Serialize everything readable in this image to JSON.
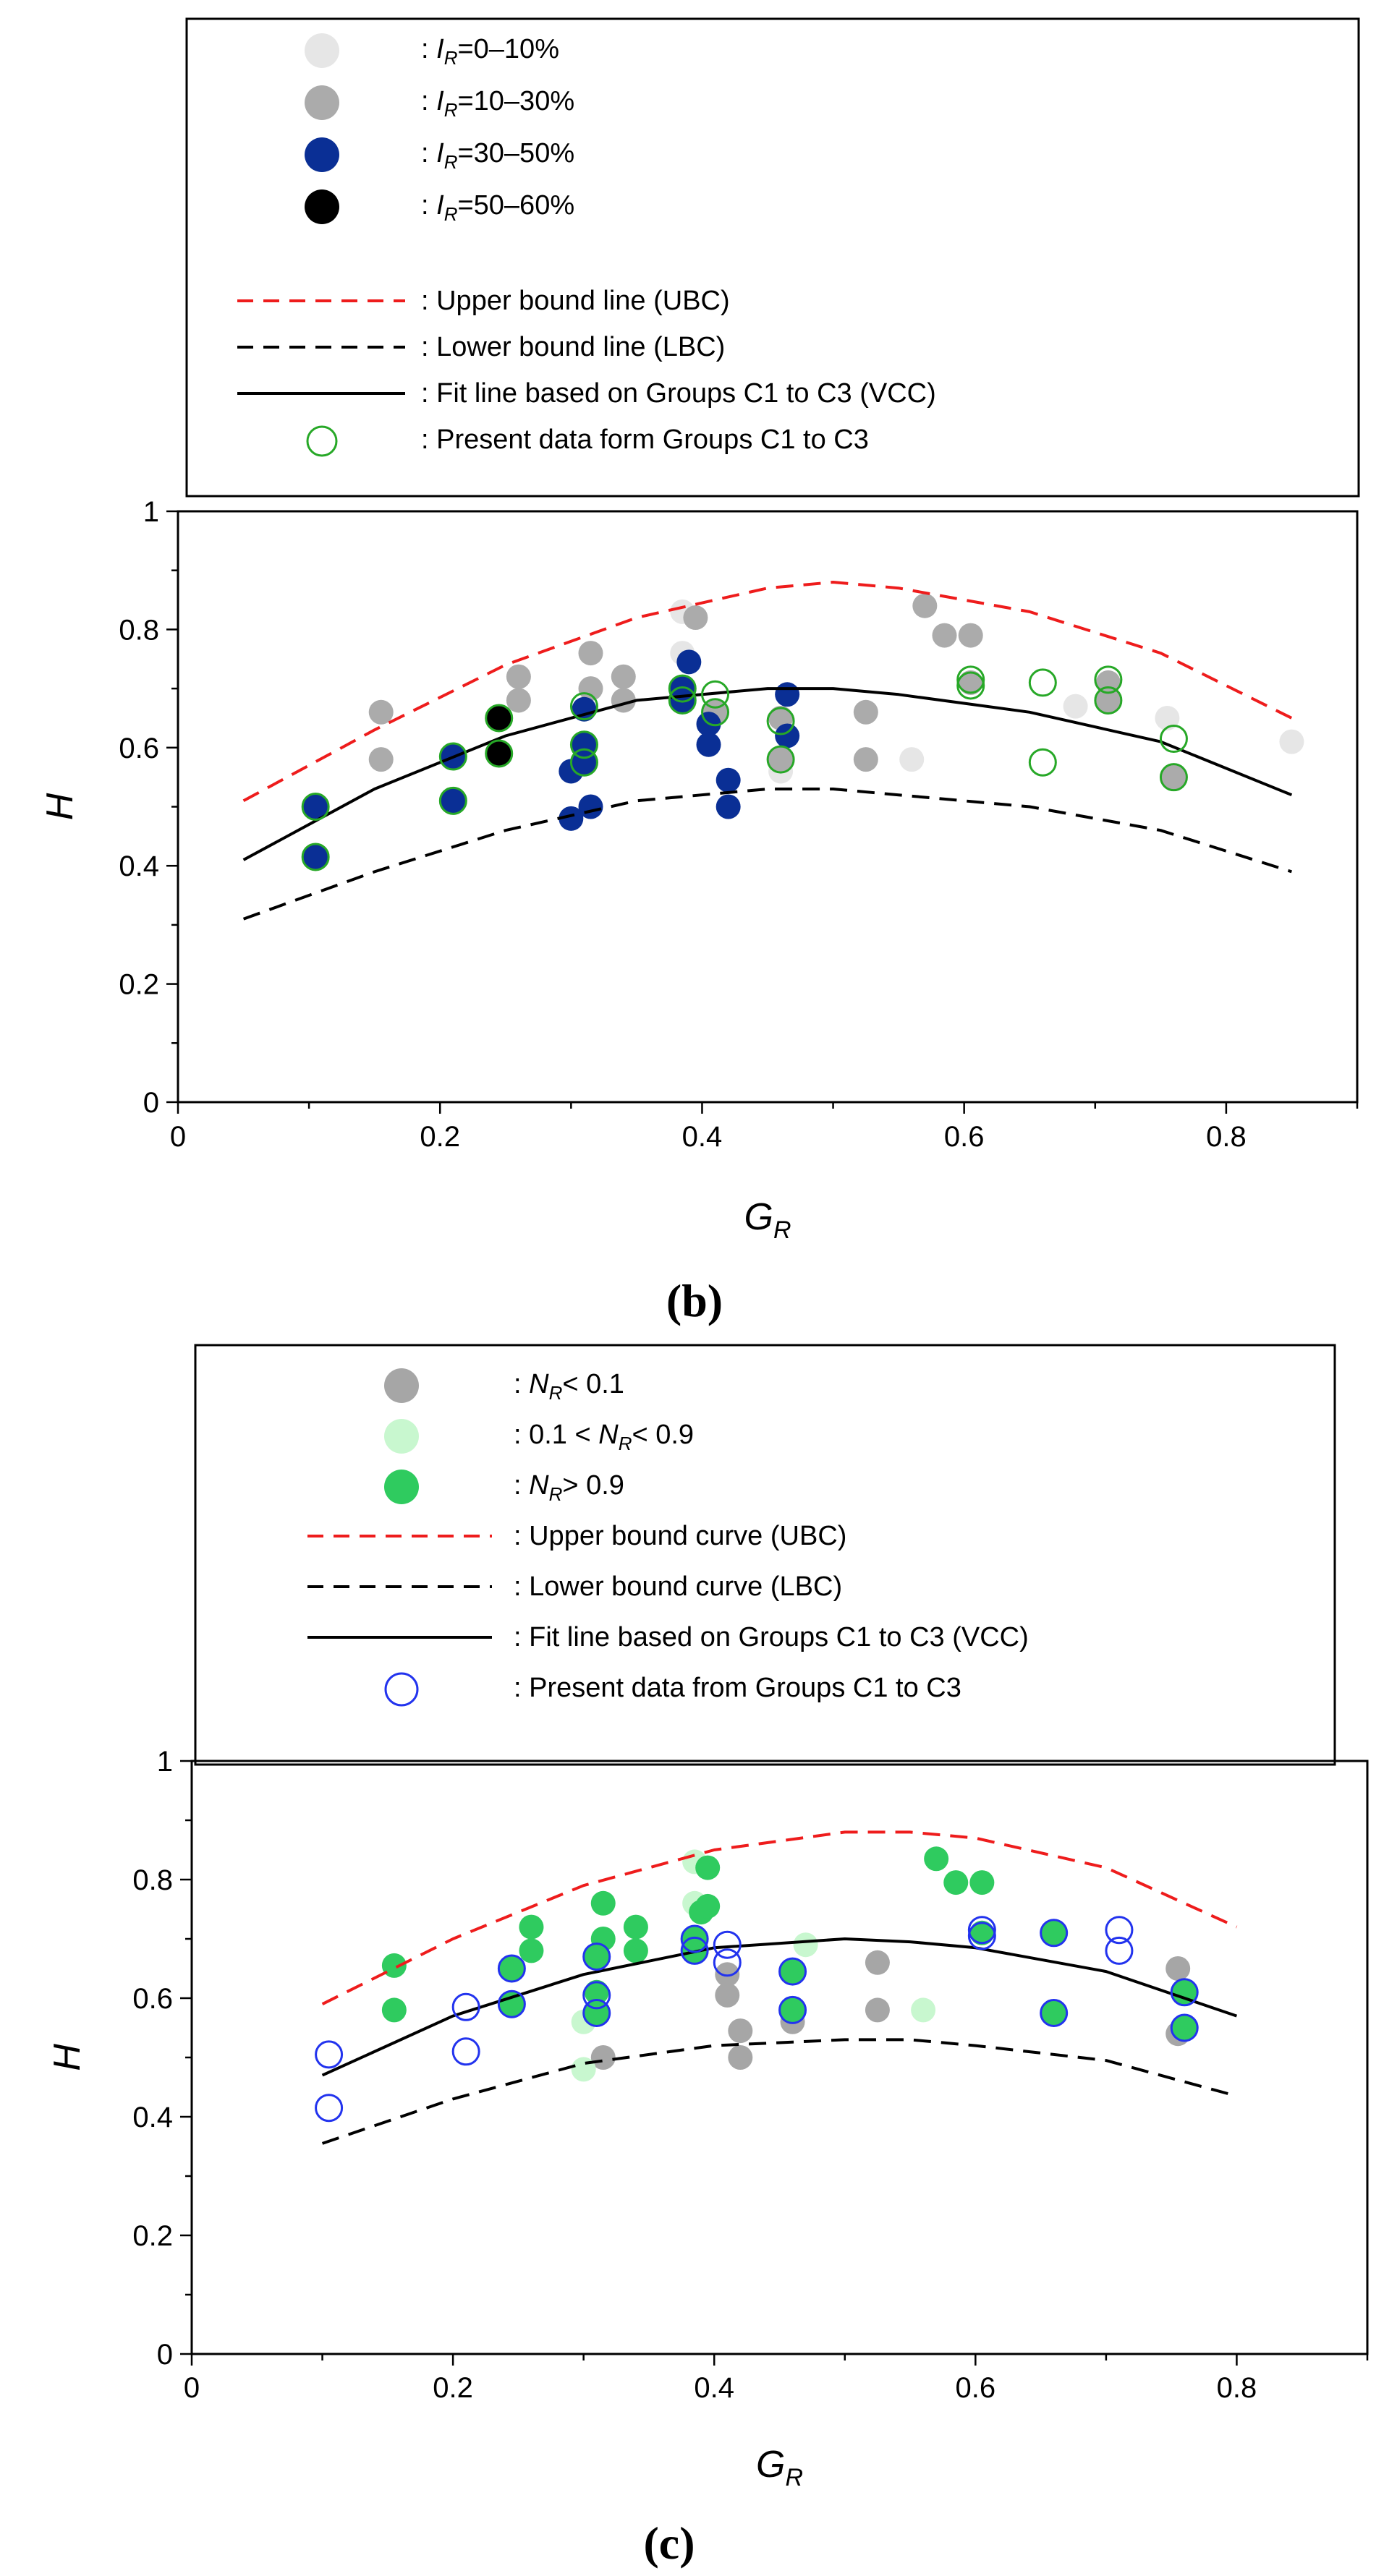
{
  "chart_data": [
    {
      "type": "scatter",
      "panel_label": "(b)",
      "xlabel": "G",
      "xlabel_sub": "R",
      "ylabel": "H",
      "xlim": [
        0,
        0.9
      ],
      "ylim": [
        0,
        1
      ],
      "x_ticks": [
        "0",
        "0.2",
        "0.4",
        "0.6",
        "0.8"
      ],
      "y_ticks": [
        "0",
        "0.2",
        "0.4",
        "0.6",
        "0.8",
        "1"
      ],
      "legend": [
        {
          "key": "ir1",
          "prefix": ": ",
          "var": "I",
          "sub": "R",
          "text": "=0–10%",
          "color": "#e6e6e6"
        },
        {
          "key": "ir2",
          "prefix": ": ",
          "var": "I",
          "sub": "R",
          "text": "=10–30%",
          "color": "#ababab"
        },
        {
          "key": "ir3",
          "prefix": ": ",
          "var": "I",
          "sub": "R",
          "text": "=30–50%",
          "color": "#0a2f95"
        },
        {
          "key": "ir4",
          "prefix": ": ",
          "var": "I",
          "sub": "R",
          "text": "=50–60%",
          "color": "#000000"
        },
        {
          "key": "ubc",
          "text": ": Upper bound line (UBC)",
          "line": "dashed",
          "color": "#ee1c1c"
        },
        {
          "key": "lbc",
          "text": ": Lower bound line (LBC)",
          "line": "dashed",
          "color": "#000000"
        },
        {
          "key": "vcc",
          "text": ": Fit line based on Groups C1 to C3 (VCC)",
          "line": "solid",
          "color": "#000000"
        },
        {
          "key": "present",
          "text": ": Present data form Groups C1 to C3",
          "marker": "open-circle",
          "color": "#27a827"
        }
      ],
      "curves": [
        {
          "name": "UBC",
          "x": [
            0.05,
            0.15,
            0.25,
            0.35,
            0.45,
            0.5,
            0.55,
            0.65,
            0.75,
            0.85
          ],
          "y": [
            0.51,
            0.63,
            0.74,
            0.82,
            0.87,
            0.88,
            0.87,
            0.83,
            0.76,
            0.65
          ]
        },
        {
          "name": "LBC",
          "x": [
            0.05,
            0.15,
            0.25,
            0.35,
            0.45,
            0.5,
            0.55,
            0.65,
            0.75,
            0.85
          ],
          "y": [
            0.31,
            0.39,
            0.46,
            0.51,
            0.53,
            0.53,
            0.52,
            0.5,
            0.46,
            0.39
          ]
        },
        {
          "name": "VCC",
          "x": [
            0.05,
            0.15,
            0.25,
            0.35,
            0.45,
            0.5,
            0.55,
            0.65,
            0.75,
            0.85
          ],
          "y": [
            0.41,
            0.53,
            0.62,
            0.68,
            0.7,
            0.7,
            0.69,
            0.66,
            0.61,
            0.52
          ]
        }
      ],
      "series": [
        {
          "name": "IR 0-10%",
          "color": "#e6e6e6",
          "points": [
            [
              0.385,
              0.83
            ],
            [
              0.385,
              0.76
            ],
            [
              0.46,
              0.56
            ],
            [
              0.56,
              0.58
            ],
            [
              0.685,
              0.67
            ],
            [
              0.755,
              0.65
            ],
            [
              0.85,
              0.61
            ]
          ]
        },
        {
          "name": "IR 10-30%",
          "color": "#ababab",
          "points": [
            [
              0.155,
              0.66
            ],
            [
              0.155,
              0.58
            ],
            [
              0.26,
              0.72
            ],
            [
              0.26,
              0.68
            ],
            [
              0.315,
              0.76
            ],
            [
              0.315,
              0.7
            ],
            [
              0.34,
              0.72
            ],
            [
              0.34,
              0.68
            ],
            [
              0.395,
              0.82
            ],
            [
              0.41,
              0.66
            ],
            [
              0.46,
              0.65
            ],
            [
              0.46,
              0.58
            ],
            [
              0.525,
              0.66
            ],
            [
              0.525,
              0.58
            ],
            [
              0.57,
              0.84
            ],
            [
              0.585,
              0.79
            ],
            [
              0.605,
              0.79
            ],
            [
              0.605,
              0.71
            ],
            [
              0.71,
              0.71
            ],
            [
              0.71,
              0.68
            ],
            [
              0.76,
              0.55
            ]
          ]
        },
        {
          "name": "IR 30-50%",
          "color": "#0a2f95",
          "points": [
            [
              0.105,
              0.5
            ],
            [
              0.105,
              0.415
            ],
            [
              0.21,
              0.585
            ],
            [
              0.21,
              0.51
            ],
            [
              0.245,
              0.59
            ],
            [
              0.3,
              0.56
            ],
            [
              0.3,
              0.48
            ],
            [
              0.31,
              0.665
            ],
            [
              0.31,
              0.605
            ],
            [
              0.31,
              0.575
            ],
            [
              0.315,
              0.5
            ],
            [
              0.385,
              0.7
            ],
            [
              0.385,
              0.68
            ],
            [
              0.39,
              0.745
            ],
            [
              0.405,
              0.64
            ],
            [
              0.405,
              0.605
            ],
            [
              0.42,
              0.545
            ],
            [
              0.42,
              0.5
            ],
            [
              0.465,
              0.69
            ],
            [
              0.465,
              0.62
            ]
          ]
        },
        {
          "name": "IR 50-60%",
          "color": "#000000",
          "points": [
            [
              0.245,
              0.65
            ],
            [
              0.245,
              0.59
            ]
          ]
        },
        {
          "name": "Present data",
          "color": "#27a827",
          "open": true,
          "points": [
            [
              0.105,
              0.5
            ],
            [
              0.105,
              0.415
            ],
            [
              0.21,
              0.585
            ],
            [
              0.21,
              0.51
            ],
            [
              0.245,
              0.65
            ],
            [
              0.245,
              0.59
            ],
            [
              0.31,
              0.67
            ],
            [
              0.31,
              0.605
            ],
            [
              0.31,
              0.575
            ],
            [
              0.385,
              0.7
            ],
            [
              0.385,
              0.68
            ],
            [
              0.41,
              0.69
            ],
            [
              0.41,
              0.66
            ],
            [
              0.46,
              0.645
            ],
            [
              0.46,
              0.58
            ],
            [
              0.605,
              0.715
            ],
            [
              0.605,
              0.705
            ],
            [
              0.66,
              0.71
            ],
            [
              0.66,
              0.575
            ],
            [
              0.71,
              0.715
            ],
            [
              0.71,
              0.68
            ],
            [
              0.76,
              0.615
            ],
            [
              0.76,
              0.55
            ]
          ]
        }
      ]
    },
    {
      "type": "scatter",
      "panel_label": "(c)",
      "xlabel": "G",
      "xlabel_sub": "R",
      "ylabel": "H",
      "xlim": [
        0,
        0.9
      ],
      "ylim": [
        0,
        1
      ],
      "x_ticks": [
        "0",
        "0.2",
        "0.4",
        "0.6",
        "0.8"
      ],
      "y_ticks": [
        "0",
        "0.2",
        "0.4",
        "0.6",
        "0.8",
        "1"
      ],
      "legend": [
        {
          "key": "nr1",
          "prefix": ": ",
          "var": "N",
          "sub": "R",
          "text": "< 0.1",
          "color": "#a6a6a6"
        },
        {
          "key": "nr2",
          "prefix": ": 0.1 < ",
          "var": "N",
          "sub": "R",
          "text": "< 0.9",
          "color": "#c8f7cf"
        },
        {
          "key": "nr3",
          "prefix": ": ",
          "var": "N",
          "sub": "R",
          "text": "> 0.9",
          "color": "#2fcb5f"
        },
        {
          "key": "ubc",
          "text": ": Upper bound curve (UBC)",
          "line": "dashed",
          "color": "#ee1c1c"
        },
        {
          "key": "lbc",
          "text": ": Lower bound curve (LBC)",
          "line": "dashed",
          "color": "#000000"
        },
        {
          "key": "vcc",
          "text": ": Fit line based on Groups C1 to C3 (VCC)",
          "line": "solid",
          "color": "#000000"
        },
        {
          "key": "present",
          "text": ": Present data from Groups C1 to C3",
          "marker": "open-circle",
          "color": "#2233ee"
        }
      ],
      "curves": [
        {
          "name": "UBC",
          "x": [
            0.1,
            0.2,
            0.3,
            0.4,
            0.5,
            0.55,
            0.6,
            0.7,
            0.8
          ],
          "y": [
            0.59,
            0.7,
            0.79,
            0.85,
            0.88,
            0.88,
            0.87,
            0.82,
            0.72
          ]
        },
        {
          "name": "LBC",
          "x": [
            0.1,
            0.2,
            0.3,
            0.4,
            0.5,
            0.55,
            0.6,
            0.7,
            0.8
          ],
          "y": [
            0.355,
            0.43,
            0.49,
            0.52,
            0.53,
            0.53,
            0.52,
            0.495,
            0.435
          ]
        },
        {
          "name": "VCC",
          "x": [
            0.1,
            0.2,
            0.3,
            0.4,
            0.5,
            0.55,
            0.6,
            0.7,
            0.8
          ],
          "y": [
            0.47,
            0.57,
            0.64,
            0.685,
            0.7,
            0.695,
            0.685,
            0.645,
            0.57
          ]
        }
      ],
      "series": [
        {
          "name": "NR < 0.1",
          "color": "#a6a6a6",
          "points": [
            [
              0.315,
              0.5
            ],
            [
              0.41,
              0.64
            ],
            [
              0.41,
              0.605
            ],
            [
              0.42,
              0.545
            ],
            [
              0.42,
              0.5
            ],
            [
              0.46,
              0.56
            ],
            [
              0.525,
              0.66
            ],
            [
              0.525,
              0.58
            ],
            [
              0.755,
              0.65
            ],
            [
              0.755,
              0.54
            ]
          ]
        },
        {
          "name": "0.1 < NR < 0.9",
          "color": "#c8f7cf",
          "points": [
            [
              0.3,
              0.56
            ],
            [
              0.3,
              0.48
            ],
            [
              0.385,
              0.83
            ],
            [
              0.385,
              0.76
            ],
            [
              0.47,
              0.69
            ],
            [
              0.56,
              0.58
            ]
          ]
        },
        {
          "name": "NR > 0.9",
          "color": "#2fcb5f",
          "points": [
            [
              0.155,
              0.655
            ],
            [
              0.155,
              0.58
            ],
            [
              0.245,
              0.65
            ],
            [
              0.245,
              0.59
            ],
            [
              0.26,
              0.72
            ],
            [
              0.26,
              0.68
            ],
            [
              0.31,
              0.67
            ],
            [
              0.31,
              0.61
            ],
            [
              0.31,
              0.575
            ],
            [
              0.315,
              0.76
            ],
            [
              0.315,
              0.7
            ],
            [
              0.34,
              0.72
            ],
            [
              0.34,
              0.68
            ],
            [
              0.385,
              0.7
            ],
            [
              0.385,
              0.68
            ],
            [
              0.39,
              0.745
            ],
            [
              0.395,
              0.82
            ],
            [
              0.395,
              0.755
            ],
            [
              0.46,
              0.645
            ],
            [
              0.46,
              0.58
            ],
            [
              0.57,
              0.835
            ],
            [
              0.585,
              0.795
            ],
            [
              0.605,
              0.795
            ],
            [
              0.605,
              0.71
            ],
            [
              0.66,
              0.71
            ],
            [
              0.66,
              0.575
            ],
            [
              0.76,
              0.61
            ],
            [
              0.76,
              0.55
            ]
          ]
        },
        {
          "name": "Present data",
          "color": "#2233ee",
          "open": true,
          "points": [
            [
              0.105,
              0.505
            ],
            [
              0.105,
              0.415
            ],
            [
              0.21,
              0.585
            ],
            [
              0.21,
              0.51
            ],
            [
              0.245,
              0.65
            ],
            [
              0.245,
              0.59
            ],
            [
              0.31,
              0.67
            ],
            [
              0.31,
              0.605
            ],
            [
              0.31,
              0.575
            ],
            [
              0.385,
              0.7
            ],
            [
              0.385,
              0.68
            ],
            [
              0.41,
              0.69
            ],
            [
              0.41,
              0.66
            ],
            [
              0.46,
              0.645
            ],
            [
              0.46,
              0.58
            ],
            [
              0.605,
              0.715
            ],
            [
              0.605,
              0.705
            ],
            [
              0.66,
              0.71
            ],
            [
              0.66,
              0.575
            ],
            [
              0.71,
              0.715
            ],
            [
              0.71,
              0.68
            ],
            [
              0.76,
              0.61
            ],
            [
              0.76,
              0.55
            ]
          ]
        }
      ]
    }
  ]
}
